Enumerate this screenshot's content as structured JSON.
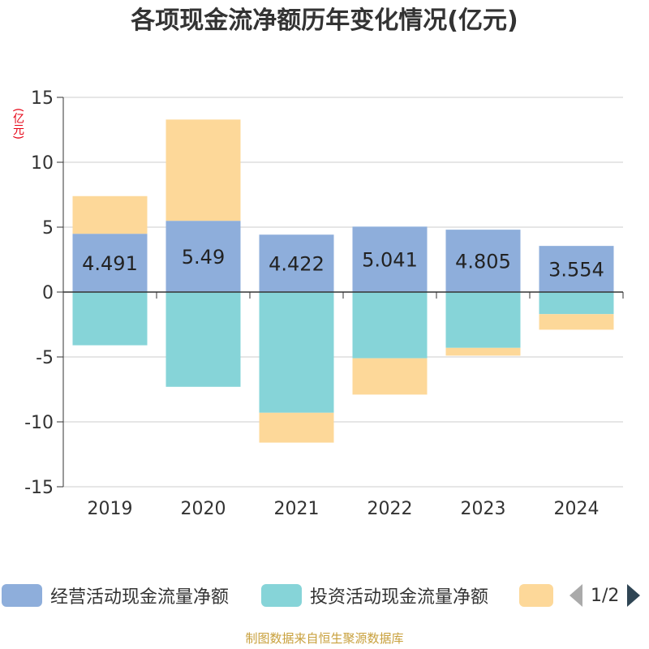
{
  "title": "各项现金流净额历年变化情况(亿元)",
  "unit_label": "(亿元)",
  "footer": "制图数据来自恒生聚源数据库",
  "pager": {
    "text": "1/2"
  },
  "legend": [
    {
      "label": "经营活动现金流量净额",
      "color": "#8eaedb"
    },
    {
      "label": "投资活动现金流量净额",
      "color": "#86d4d8"
    },
    {
      "label": "",
      "color": "#fdd899"
    }
  ],
  "chart_data": {
    "type": "bar",
    "stacked": true,
    "categories": [
      "2019",
      "2020",
      "2021",
      "2022",
      "2023",
      "2024"
    ],
    "ylim": [
      -15,
      15
    ],
    "yticks": [
      15,
      10,
      5,
      0,
      -5,
      -10,
      -15
    ],
    "series": [
      {
        "name": "经营活动现金流量净额",
        "color": "#8eaedb",
        "values": [
          4.491,
          5.49,
          4.422,
          5.041,
          4.805,
          3.554
        ],
        "labels": [
          "4.491",
          "5.49",
          "4.422",
          "5.041",
          "4.805",
          "3.554"
        ]
      },
      {
        "name": "投资活动现金流量净额",
        "color": "#86d4d8",
        "values": [
          -4.1,
          -7.3,
          -9.3,
          -5.1,
          -4.3,
          -1.7
        ]
      },
      {
        "color": "#fdd899",
        "values": [
          2.9,
          7.8,
          -2.3,
          -2.8,
          -0.6,
          -1.2
        ]
      }
    ],
    "grid": true
  }
}
